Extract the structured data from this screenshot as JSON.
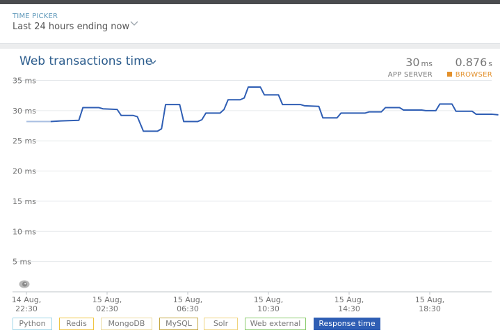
{
  "time_picker": {
    "label": "TIME PICKER",
    "value": "Last 24 hours ending now"
  },
  "chart_header": {
    "title": "Web transactions time",
    "app_server": {
      "value": "30",
      "unit": "ms",
      "label": "APP SERVER"
    },
    "browser": {
      "value": "0.876",
      "unit": "s",
      "label": "BROWSER",
      "color": "#e3902b"
    }
  },
  "legend": [
    {
      "label": "Python",
      "color": "#9fd6e8",
      "selected": false
    },
    {
      "label": "Redis",
      "color": "#f0c542",
      "selected": false
    },
    {
      "label": "MongoDB",
      "color": "#ecdca0",
      "selected": false
    },
    {
      "label": "MySQL",
      "color": "#c4a640",
      "selected": false
    },
    {
      "label": "Solr",
      "color": "#efd47e",
      "selected": false
    },
    {
      "label": "Web external",
      "color": "#8ccc6e",
      "selected": false
    },
    {
      "label": "Response time",
      "color": "#2f5eb4",
      "selected": true
    }
  ],
  "chart_data": {
    "type": "line",
    "ylim": [
      0,
      35
    ],
    "y_ticks": [
      {
        "value": 35,
        "label": "35 ms"
      },
      {
        "value": 30,
        "label": "30 ms"
      },
      {
        "value": 25,
        "label": "25 ms"
      },
      {
        "value": 20,
        "label": "20 ms"
      },
      {
        "value": 15,
        "label": "15 ms"
      },
      {
        "value": 10,
        "label": "10 ms"
      },
      {
        "value": 5,
        "label": "5 ms"
      }
    ],
    "x_ticks": [
      {
        "t": 0,
        "date": "14 Aug,",
        "time": "22:30"
      },
      {
        "t": 4,
        "date": "15 Aug,",
        "time": "02:30"
      },
      {
        "t": 8,
        "date": "15 Aug,",
        "time": "06:30"
      },
      {
        "t": 12,
        "date": "15 Aug,",
        "time": "10:30"
      },
      {
        "t": 16,
        "date": "15 Aug,",
        "time": "14:30"
      },
      {
        "t": 20,
        "date": "15 Aug,",
        "time": "18:30"
      }
    ],
    "xlim": [
      0,
      23.4
    ],
    "grid": true,
    "series": [
      {
        "name": "Response time",
        "color": "#2f5eb4",
        "partial_color": "#a9bfe2",
        "partial_until": 1.2,
        "points": [
          [
            0.0,
            28.2
          ],
          [
            1.2,
            28.2
          ],
          [
            1.7,
            28.3
          ],
          [
            2.6,
            28.4
          ],
          [
            2.8,
            30.5
          ],
          [
            3.6,
            30.5
          ],
          [
            3.8,
            30.3
          ],
          [
            4.5,
            30.2
          ],
          [
            4.7,
            29.2
          ],
          [
            5.3,
            29.2
          ],
          [
            5.5,
            29.0
          ],
          [
            5.8,
            26.6
          ],
          [
            6.5,
            26.6
          ],
          [
            6.7,
            27.0
          ],
          [
            6.9,
            31.0
          ],
          [
            7.6,
            31.0
          ],
          [
            7.8,
            28.2
          ],
          [
            8.5,
            28.2
          ],
          [
            8.7,
            28.5
          ],
          [
            8.9,
            29.6
          ],
          [
            9.6,
            29.6
          ],
          [
            9.8,
            30.2
          ],
          [
            10.0,
            31.8
          ],
          [
            10.6,
            31.8
          ],
          [
            10.8,
            32.1
          ],
          [
            11.0,
            33.9
          ],
          [
            11.6,
            33.9
          ],
          [
            11.8,
            32.6
          ],
          [
            12.5,
            32.6
          ],
          [
            12.7,
            31.0
          ],
          [
            13.6,
            31.0
          ],
          [
            13.8,
            30.8
          ],
          [
            14.5,
            30.7
          ],
          [
            14.7,
            28.8
          ],
          [
            15.4,
            28.8
          ],
          [
            15.6,
            29.6
          ],
          [
            16.8,
            29.6
          ],
          [
            17.0,
            29.8
          ],
          [
            17.6,
            29.8
          ],
          [
            17.8,
            30.5
          ],
          [
            18.5,
            30.5
          ],
          [
            18.7,
            30.1
          ],
          [
            19.6,
            30.1
          ],
          [
            19.8,
            30.0
          ],
          [
            20.3,
            30.0
          ],
          [
            20.5,
            31.1
          ],
          [
            21.1,
            31.1
          ],
          [
            21.3,
            29.9
          ],
          [
            22.1,
            29.9
          ],
          [
            22.3,
            29.4
          ],
          [
            23.1,
            29.4
          ],
          [
            23.4,
            29.3
          ]
        ]
      }
    ]
  }
}
